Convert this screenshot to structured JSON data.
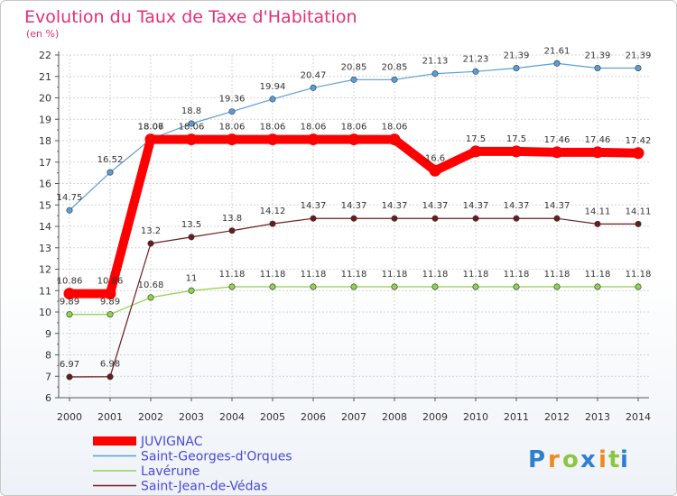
{
  "chart_data": {
    "type": "line",
    "title": "Evolution du Taux de Taxe d'Habitation",
    "subtitle": "(en %)",
    "x": [
      "2000",
      "2001",
      "2002",
      "2003",
      "2004",
      "2005",
      "2006",
      "2007",
      "2008",
      "2009",
      "2010",
      "2011",
      "2012",
      "2013",
      "2014"
    ],
    "y_ticks": [
      "6",
      "7",
      "8",
      "9",
      "10",
      "11",
      "12",
      "13",
      "14",
      "15",
      "16",
      "17",
      "18",
      "19",
      "20",
      "21",
      "22"
    ],
    "ylim": [
      6,
      22
    ],
    "grid": true,
    "legend_position": "bottom-left",
    "series": [
      {
        "name": "JUVIGNAC",
        "color": "#ff0000",
        "values": [
          10.86,
          10.86,
          18.06,
          18.06,
          18.06,
          18.06,
          18.06,
          18.06,
          18.06,
          16.6,
          17.5,
          17.5,
          17.46,
          17.46,
          17.42
        ],
        "labels": [
          "10.86",
          "10.86",
          "18.06",
          "18.06",
          "18.06",
          "18.06",
          "18.06",
          "18.06",
          "18.06",
          "16.6",
          "17.5",
          "17.5",
          "17.46",
          "17.46",
          "17.42"
        ]
      },
      {
        "name": "Saint-Georges-d'Orques",
        "color": "#5a9ed6",
        "values": [
          14.75,
          16.52,
          18.07,
          18.8,
          19.36,
          19.94,
          20.47,
          20.85,
          20.85,
          21.13,
          21.23,
          21.39,
          21.61,
          21.39,
          21.39
        ],
        "labels": [
          "14.75",
          "16.52",
          "18.07",
          "18.8",
          "19.36",
          "19.94",
          "20.47",
          "20.85",
          "20.85",
          "21.13",
          "21.23",
          "21.39",
          "21.61",
          "21.39",
          "21.39"
        ]
      },
      {
        "name": "Lavérune",
        "color": "#8fd44a",
        "values": [
          9.89,
          9.89,
          10.68,
          11,
          11.18,
          11.18,
          11.18,
          11.18,
          11.18,
          11.18,
          11.18,
          11.18,
          11.18,
          11.18,
          11.18
        ],
        "labels": [
          "9.89",
          "9.89",
          "10.68",
          "11",
          "11.18",
          "11.18",
          "11.18",
          "11.18",
          "11.18",
          "11.18",
          "11.18",
          "11.18",
          "11.18",
          "11.18",
          "11.18"
        ]
      },
      {
        "name": "Saint-Jean-de-Védas",
        "color": "#6b1c1c",
        "values": [
          6.97,
          6.98,
          13.2,
          13.5,
          13.8,
          14.12,
          14.37,
          14.37,
          14.37,
          14.37,
          14.37,
          14.37,
          14.37,
          14.11,
          14.11
        ],
        "labels": [
          "6.97",
          "6.98",
          "13.2",
          "13.5",
          "13.8",
          "14.12",
          "14.37",
          "14.37",
          "14.37",
          "14.37",
          "14.37",
          "14.37",
          "14.37",
          "14.11",
          "14.11"
        ]
      }
    ]
  },
  "logo": {
    "letters": [
      "P",
      "r",
      "o",
      "x",
      "i",
      "t",
      "i"
    ],
    "colors": [
      "#2e7fd0",
      "#ee8a1d",
      "#8dc63f",
      "#2e7fd0",
      "#ee8a1d",
      "#8dc63f",
      "#2e7fd0"
    ]
  },
  "colors": {
    "title": "#e2307a",
    "grid": "#d4d4d4",
    "axis": "#555555"
  }
}
